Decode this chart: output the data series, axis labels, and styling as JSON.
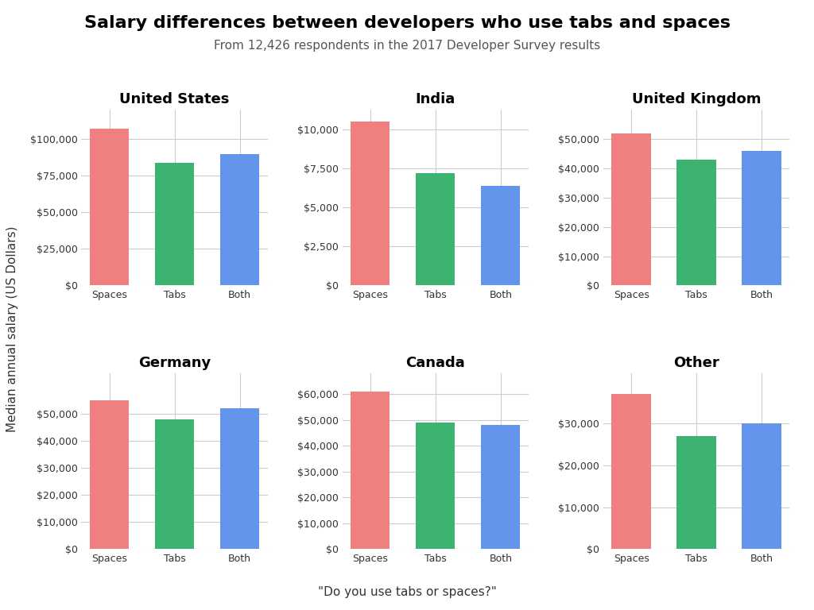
{
  "title": "Salary differences between developers who use tabs and spaces",
  "subtitle": "From 12,426 respondents in the 2017 Developer Survey results",
  "ylabel": "Median annual salary (US Dollars)",
  "xlabel": "\"Do you use tabs or spaces?\"",
  "categories": [
    "Spaces",
    "Tabs",
    "Both"
  ],
  "bar_colors": [
    "#F08080",
    "#3CB371",
    "#6495ED"
  ],
  "subplots": [
    {
      "title": "United States",
      "values": [
        107000,
        84000,
        90000
      ],
      "ylim": [
        0,
        120000
      ],
      "yticks": [
        0,
        25000,
        50000,
        75000,
        100000
      ]
    },
    {
      "title": "India",
      "values": [
        10500,
        7200,
        6400
      ],
      "ylim": [
        0,
        11250
      ],
      "yticks": [
        0,
        2500,
        5000,
        7500,
        10000
      ]
    },
    {
      "title": "United Kingdom",
      "values": [
        52000,
        43000,
        46000
      ],
      "ylim": [
        0,
        60000
      ],
      "yticks": [
        0,
        10000,
        20000,
        30000,
        40000,
        50000
      ]
    },
    {
      "title": "Germany",
      "values": [
        55000,
        48000,
        52000
      ],
      "ylim": [
        0,
        65000
      ],
      "yticks": [
        0,
        10000,
        20000,
        30000,
        40000,
        50000
      ]
    },
    {
      "title": "Canada",
      "values": [
        61000,
        49000,
        48000
      ],
      "ylim": [
        0,
        68000
      ],
      "yticks": [
        0,
        10000,
        20000,
        30000,
        40000,
        50000,
        60000
      ]
    },
    {
      "title": "Other",
      "values": [
        37000,
        27000,
        30000
      ],
      "ylim": [
        0,
        42000
      ],
      "yticks": [
        0,
        10000,
        20000,
        30000
      ]
    }
  ],
  "background_color": "#FFFFFF",
  "grid_color": "#CCCCCC",
  "title_fontsize": 16,
  "subtitle_fontsize": 11,
  "subplot_title_fontsize": 13,
  "tick_fontsize": 9,
  "label_fontsize": 11
}
